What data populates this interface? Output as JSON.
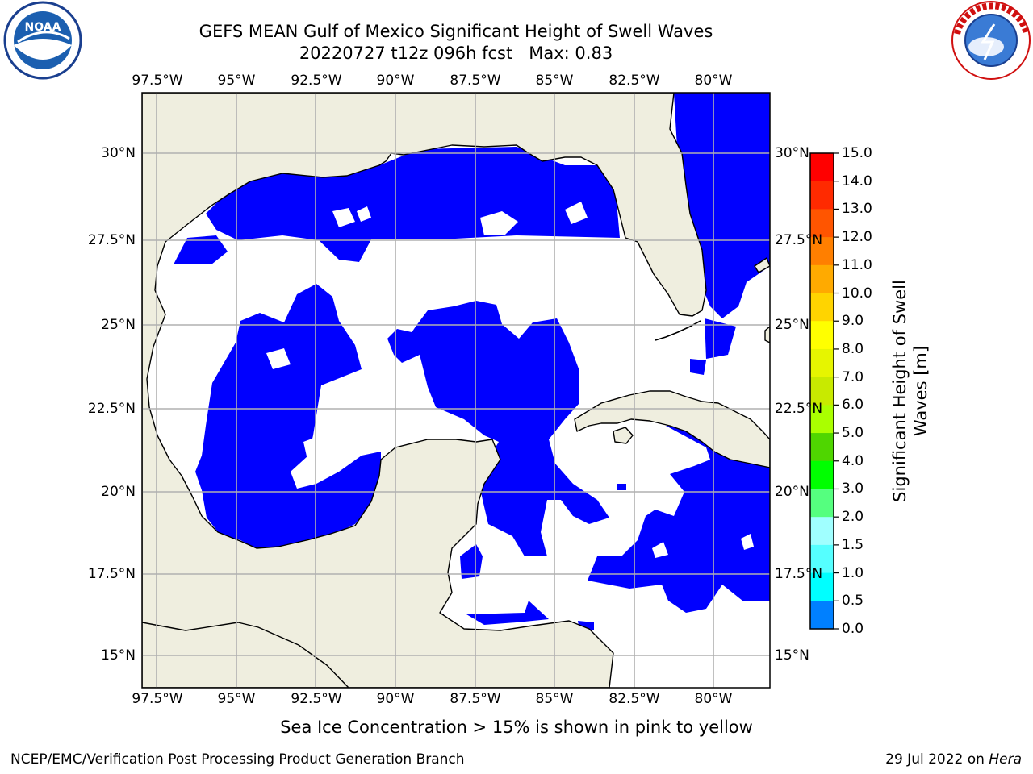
{
  "header": {
    "title": "GEFS MEAN Gulf of Mexico Significant Height of Swell Waves",
    "subtitle": "20220727 t12z 096h fcst",
    "max_label": "Max: 0.83"
  },
  "logos": {
    "left": "NOAA",
    "right": "NATIONAL WEATHER SERVICE"
  },
  "map": {
    "region": "Gulf of Mexico",
    "lon_ticks": [
      "97.5°W",
      "95°W",
      "92.5°W",
      "90°W",
      "87.5°W",
      "85°W",
      "82.5°W",
      "80°W"
    ],
    "lat_ticks": [
      "30°N",
      "27.5°N",
      "25°N",
      "22.5°N",
      "20°N",
      "17.5°N",
      "15°N"
    ],
    "colors": {
      "land": "#efeedf",
      "low_swell": "#0000ff",
      "swell_0_5": "#0080ff",
      "grid": "#b0b0b0"
    }
  },
  "colorbar": {
    "title": "Significant Height of Swell Waves [m]",
    "labels": [
      "15.0",
      "14.0",
      "13.0",
      "12.0",
      "11.0",
      "10.0",
      "9.0",
      "8.0",
      "7.0",
      "6.0",
      "5.0",
      "4.0",
      "3.0",
      "2.0",
      "1.5",
      "1.0",
      "0.5",
      "0.0"
    ],
    "colors": [
      "#ff0000",
      "#ff2a00",
      "#ff5500",
      "#ff7f00",
      "#ffaa00",
      "#ffd400",
      "#ffff00",
      "#e6f500",
      "#c8ea00",
      "#aaff00",
      "#4fd600",
      "#00ff00",
      "#55ff7f",
      "#a0ffff",
      "#55ffff",
      "#00ffff",
      "#0080ff",
      "#0000ff"
    ]
  },
  "footer": {
    "note": "Sea Ice Concentration > 15% is shown in pink to yellow",
    "credit": "NCEP/EMC/Verification Post Processing Product Generation Branch",
    "date": "29 Jul 2022 on",
    "host": "Hera"
  }
}
